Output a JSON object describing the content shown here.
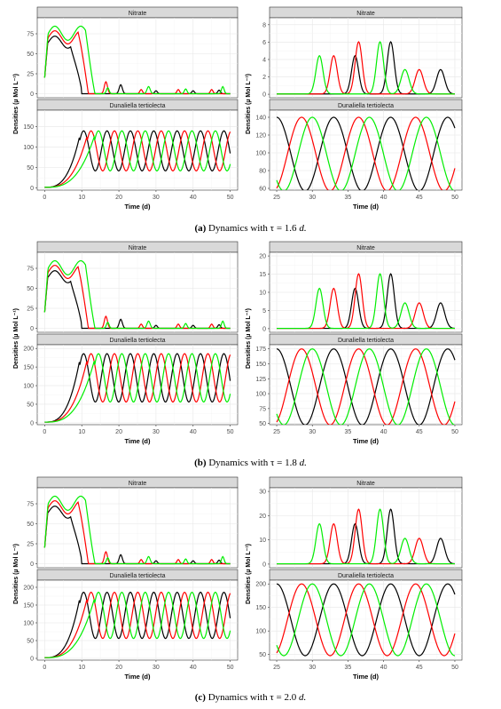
{
  "figure": {
    "ylabel": "Densities (µ Mol L⁻¹)",
    "xlabel": "Time (d)",
    "caption_suffix": " d.",
    "series_colors": [
      "#000000",
      "#ff0000",
      "#00ee00"
    ]
  },
  "chart_data": [
    {
      "type": "line",
      "panel": "a",
      "caption_label": "(a)",
      "caption_text": " Dynamics with τ = 1.6",
      "rows": [
        {
          "title": "Nitrate",
          "left": {
            "x_ticks": [
              0,
              10,
              20,
              30,
              40,
              50
            ],
            "y_ticks": [
              0,
              25,
              50,
              75
            ],
            "ylim": [
              -5,
              95
            ]
          },
          "right": {
            "x_ticks": [
              25,
              30,
              35,
              40,
              45,
              50
            ],
            "y_ticks": [
              0,
              2,
              4,
              6,
              8
            ],
            "ylim": [
              -0.4,
              8.8
            ]
          }
        },
        {
          "title": "Dunaliella tertiolecta",
          "left": {
            "x_ticks": [
              0,
              10,
              20,
              30,
              40,
              50
            ],
            "y_ticks": [
              0,
              50,
              100,
              150
            ],
            "ylim": [
              -5,
              190
            ]
          },
          "right": {
            "x_ticks": [
              25,
              30,
              35,
              40,
              45,
              50
            ],
            "y_ticks": [
              60,
              80,
              100,
              120,
              140
            ],
            "ylim": [
              58,
              148
            ]
          }
        }
      ]
    },
    {
      "type": "line",
      "panel": "b",
      "caption_label": "(b)",
      "caption_text": " Dynamics with τ = 1.8",
      "rows": [
        {
          "title": "Nitrate",
          "left": {
            "x_ticks": [
              0,
              10,
              20,
              30,
              40,
              50
            ],
            "y_ticks": [
              0,
              25,
              50,
              75
            ],
            "ylim": [
              -5,
              95
            ]
          },
          "right": {
            "x_ticks": [
              25,
              30,
              35,
              40,
              45,
              50
            ],
            "y_ticks": [
              0,
              5,
              10,
              15,
              20
            ],
            "ylim": [
              -1,
              21
            ]
          }
        },
        {
          "title": "Dunaliella tertiolecta",
          "left": {
            "x_ticks": [
              0,
              10,
              20,
              30,
              40,
              50
            ],
            "y_ticks": [
              0,
              50,
              100,
              150,
              200
            ],
            "ylim": [
              -5,
              210
            ]
          },
          "right": {
            "x_ticks": [
              25,
              30,
              35,
              40,
              45,
              50
            ],
            "y_ticks": [
              50,
              75,
              100,
              125,
              150,
              175
            ],
            "ylim": [
              48,
              182
            ]
          }
        }
      ]
    },
    {
      "type": "line",
      "panel": "c",
      "caption_label": "(c)",
      "caption_text": " Dynamics with τ = 2.0",
      "rows": [
        {
          "title": "Nitrate",
          "left": {
            "x_ticks": [
              0,
              10,
              20,
              30,
              40,
              50
            ],
            "y_ticks": [
              0,
              25,
              50,
              75
            ],
            "ylim": [
              -5,
              95
            ]
          },
          "right": {
            "x_ticks": [
              25,
              30,
              35,
              40,
              45,
              50
            ],
            "y_ticks": [
              0,
              10,
              20,
              30
            ],
            "ylim": [
              -1.5,
              31.5
            ]
          }
        },
        {
          "title": "Dunaliella tertiolecta",
          "left": {
            "x_ticks": [
              0,
              10,
              20,
              30,
              40,
              50
            ],
            "y_ticks": [
              0,
              50,
              100,
              150,
              200
            ],
            "ylim": [
              -5,
              220
            ]
          },
          "right": {
            "x_ticks": [
              25,
              30,
              35,
              40,
              45,
              50
            ],
            "y_ticks": [
              50,
              100,
              150,
              200
            ],
            "ylim": [
              38,
              208
            ]
          }
        }
      ]
    }
  ]
}
